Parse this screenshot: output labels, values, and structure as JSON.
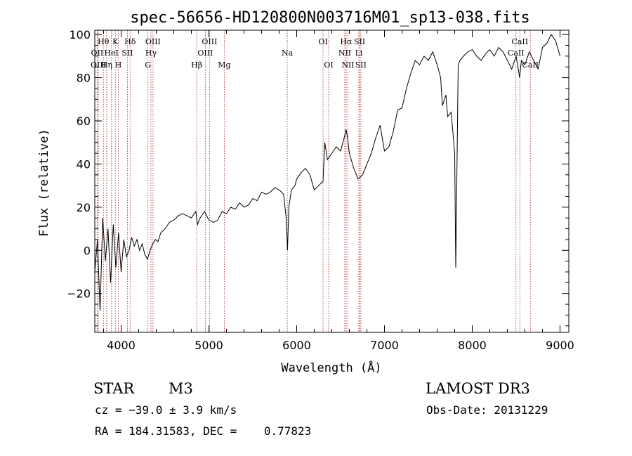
{
  "chart_data": {
    "type": "line",
    "title": "spec-56656-HD120800N003716M01_sp13-038.fits",
    "xlabel": "Wavelength (Å)",
    "ylabel": "Flux (relative)",
    "xlim": [
      3700,
      9100
    ],
    "ylim": [
      -38,
      102
    ],
    "xticks": [
      4000,
      5000,
      6000,
      7000,
      8000,
      9000
    ],
    "yticks": [
      -20,
      0,
      20,
      40,
      60,
      80,
      100
    ],
    "xtick_labels": [
      "4000",
      "5000",
      "6000",
      "7000",
      "8000",
      "9000"
    ],
    "ytick_labels": [
      "−20",
      "0",
      "20",
      "40",
      "60",
      "80",
      "100"
    ],
    "series": [
      {
        "name": "flux",
        "x": [
          3700,
          3730,
          3760,
          3790,
          3820,
          3850,
          3880,
          3910,
          3940,
          3970,
          4000,
          4030,
          4060,
          4090,
          4120,
          4150,
          4180,
          4210,
          4240,
          4270,
          4300,
          4330,
          4360,
          4390,
          4420,
          4450,
          4500,
          4550,
          4600,
          4650,
          4700,
          4750,
          4800,
          4850,
          4870,
          4900,
          4950,
          5000,
          5050,
          5100,
          5150,
          5200,
          5250,
          5300,
          5350,
          5400,
          5450,
          5500,
          5550,
          5600,
          5650,
          5700,
          5750,
          5800,
          5850,
          5880,
          5895,
          5910,
          5940,
          5980,
          6000,
          6050,
          6100,
          6150,
          6200,
          6250,
          6300,
          6320,
          6350,
          6400,
          6450,
          6500,
          6540,
          6563,
          6580,
          6600,
          6650,
          6700,
          6750,
          6800,
          6850,
          6900,
          6950,
          7000,
          7050,
          7100,
          7150,
          7200,
          7250,
          7300,
          7350,
          7400,
          7450,
          7500,
          7550,
          7600,
          7640,
          7660,
          7700,
          7720,
          7760,
          7800,
          7812,
          7820,
          7840,
          7860,
          7900,
          7950,
          8000,
          8050,
          8100,
          8150,
          8200,
          8250,
          8300,
          8350,
          8400,
          8450,
          8500,
          8540,
          8560,
          8600,
          8650,
          8700,
          8750,
          8800,
          8850,
          8900,
          8950,
          9000
        ],
        "y": [
          -10,
          5,
          -28,
          15,
          -5,
          10,
          -15,
          12,
          -8,
          8,
          -10,
          5,
          -3,
          0,
          6,
          2,
          5,
          0,
          3,
          -2,
          -4,
          0,
          3,
          5,
          4,
          8,
          10,
          13,
          14,
          16,
          17,
          16,
          15,
          18,
          12,
          15,
          18,
          14,
          13,
          14,
          18,
          17,
          20,
          19,
          22,
          20,
          21,
          24,
          23,
          27,
          26,
          27,
          29,
          28,
          26,
          15,
          0,
          20,
          28,
          30,
          33,
          36,
          38,
          35,
          28,
          30,
          32,
          50,
          42,
          45,
          48,
          46,
          52,
          56,
          52,
          45,
          38,
          33,
          35,
          40,
          45,
          52,
          58,
          46,
          48,
          55,
          65,
          66,
          75,
          82,
          88,
          86,
          90,
          88,
          92,
          86,
          80,
          67,
          72,
          62,
          64,
          45,
          -8,
          18,
          86,
          88,
          90,
          92,
          93,
          90,
          88,
          91,
          93,
          90,
          94,
          92,
          88,
          84,
          90,
          80,
          88,
          86,
          92,
          88,
          84,
          94,
          96,
          100,
          97,
          90
        ]
      }
    ],
    "line_labels": [
      {
        "text": "Hθ",
        "row": 1,
        "wavelength": 3798
      },
      {
        "text": "K",
        "row": 1,
        "wavelength": 3934
      },
      {
        "text": "Hδ",
        "row": 1,
        "wavelength": 4102
      },
      {
        "text": "OIII",
        "row": 1,
        "wavelength": 4363
      },
      {
        "text": "OIII",
        "row": 1,
        "wavelength": 5007
      },
      {
        "text": "OI",
        "row": 1,
        "wavelength": 6300
      },
      {
        "text": "Hα",
        "row": 1,
        "wavelength": 6563
      },
      {
        "text": "SII",
        "row": 1,
        "wavelength": 6717
      },
      {
        "text": "CaII",
        "row": 1,
        "wavelength": 8542
      },
      {
        "text": "OII",
        "row": 2,
        "wavelength": 3727
      },
      {
        "text": "HeI",
        "row": 2,
        "wavelength": 3889
      },
      {
        "text": "SII",
        "row": 2,
        "wavelength": 4072
      },
      {
        "text": "Hγ",
        "row": 2,
        "wavelength": 4340
      },
      {
        "text": "OIII",
        "row": 2,
        "wavelength": 4959
      },
      {
        "text": "Na",
        "row": 2,
        "wavelength": 5893
      },
      {
        "text": "NII",
        "row": 2,
        "wavelength": 6548
      },
      {
        "text": "Li",
        "row": 2,
        "wavelength": 6708
      },
      {
        "text": "CaII",
        "row": 2,
        "wavelength": 8498
      },
      {
        "text": "OIII",
        "row": 3,
        "wavelength": 3740
      },
      {
        "text": "Hη",
        "row": 3,
        "wavelength": 3835
      },
      {
        "text": "H",
        "row": 3,
        "wavelength": 3968
      },
      {
        "text": "G",
        "row": 3,
        "wavelength": 4305
      },
      {
        "text": "Hβ",
        "row": 3,
        "wavelength": 4861
      },
      {
        "text": "Mg",
        "row": 3,
        "wavelength": 5175
      },
      {
        "text": "OI",
        "row": 3,
        "wavelength": 6364
      },
      {
        "text": "NII",
        "row": 3,
        "wavelength": 6584
      },
      {
        "text": "SII",
        "row": 3,
        "wavelength": 6731
      },
      {
        "text": "CaII",
        "row": 3,
        "wavelength": 8662
      }
    ],
    "reference_lines": [
      3727,
      3740,
      3798,
      3835,
      3889,
      3934,
      3968,
      4072,
      4102,
      4305,
      4340,
      4363,
      4861,
      4959,
      5007,
      5175,
      5893,
      6300,
      6364,
      6548,
      6563,
      6584,
      6708,
      6717,
      6731,
      8498,
      8542,
      8662
    ],
    "colors": {
      "spectrum": "#000000",
      "reference_line": "#b22222",
      "axis": "#000000"
    }
  },
  "info": {
    "object_class": "STAR",
    "subclass": "M3",
    "survey": "LAMOST DR3",
    "redshift": "cz = −39.0 ± 3.9 km/s",
    "obs_date": "Obs-Date: 20131229",
    "coords": "RA = 184.31583, DEC =    0.77823"
  }
}
